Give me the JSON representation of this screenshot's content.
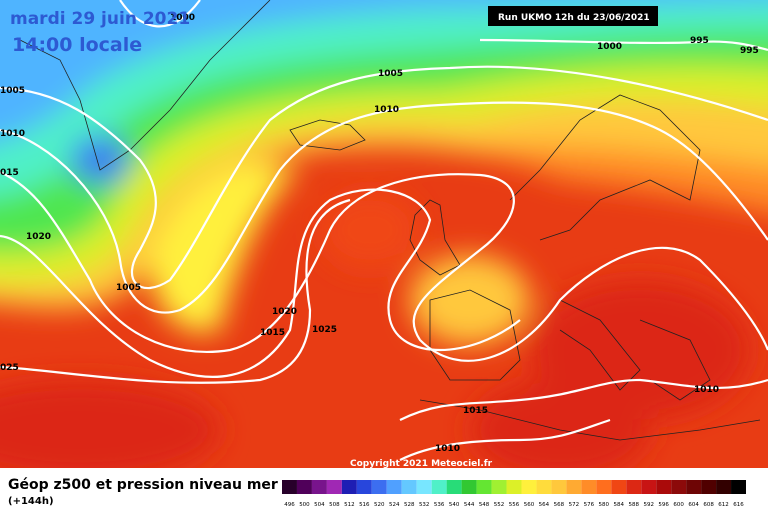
{
  "map": {
    "title": "mardi 29 juin 2021",
    "time": "14:00 locale",
    "run": "Run UKMO 12h du 23/06/2021",
    "copyright": "Copyright 2021 Meteociel.fr",
    "isobar_labels": [
      "1000",
      "1000",
      "995",
      "995",
      "1005",
      "1010",
      "015",
      "1005",
      "1010",
      "1020",
      "1005",
      "1020",
      "1015",
      "1025",
      "025",
      "1015",
      "1010",
      "1010"
    ],
    "legend": {
      "title": "Géop z500 et pression niveau mer",
      "lead": "(+144h)",
      "scale": [
        496,
        500,
        504,
        508,
        512,
        516,
        520,
        524,
        528,
        532,
        536,
        540,
        544,
        548,
        552,
        556,
        560,
        564,
        568,
        572,
        576,
        580,
        584,
        588,
        592,
        596,
        600,
        604,
        608,
        612,
        616
      ]
    }
  }
}
